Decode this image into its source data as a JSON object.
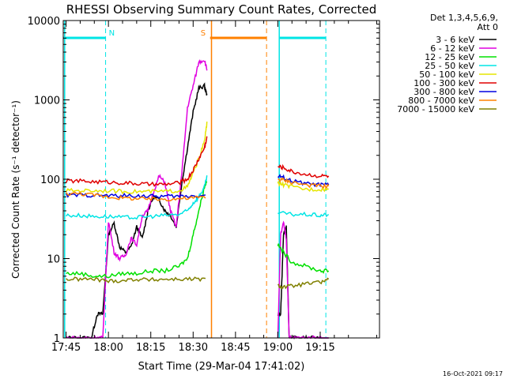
{
  "chart_data": {
    "type": "line",
    "title": "RHESSI Observing Summary Count Rates, Corrected",
    "xlabel": "Start Time (29-Mar-04 17:41:02)",
    "ylabel": "Corrected Count Rate (s⁻¹ detector⁻¹)",
    "yscale": "log",
    "ylim": [
      1,
      10000
    ],
    "xlim_minutes": [
      -16,
      96
    ],
    "x_ticks": [
      {
        "t": -15,
        "label": "17:45"
      },
      {
        "t": 0,
        "label": "18:00"
      },
      {
        "t": 15,
        "label": "18:15"
      },
      {
        "t": 30,
        "label": "18:30"
      },
      {
        "t": 45,
        "label": "18:45"
      },
      {
        "t": 60,
        "label": "19:00"
      },
      {
        "t": 75,
        "label": "19:15"
      }
    ],
    "y_ticks": [
      {
        "v": 1,
        "label": "1"
      },
      {
        "v": 10,
        "label": "10"
      },
      {
        "v": 100,
        "label": "100"
      },
      {
        "v": 1000,
        "label": "1000"
      },
      {
        "v": 10000,
        "label": "10000"
      }
    ],
    "legend_title": [
      "Det 1,3,4,5,6,9,",
      "Att 0"
    ],
    "legend_position": "top-right",
    "footer_date": "16-Oct-2021 09:17",
    "markers": [
      {
        "label": "N",
        "color": "#00e5e5",
        "t_start": -16,
        "t_end": -1,
        "t_line_solid": -15.5,
        "t_line_dashed": -1
      },
      {
        "label": "S",
        "color": "#ff8000",
        "t_start": 36,
        "t_end": 56,
        "t_line_solid": 36.5,
        "t_line_dashed": 56
      },
      {
        "label": "",
        "color": "#00e5e5",
        "t_start": 60.5,
        "t_end": 77,
        "t_line_solid": 60.5,
        "t_line_dashed": 77
      }
    ],
    "series": [
      {
        "name": "3 - 6 keV",
        "color": "#000000",
        "x": [
          -15,
          -10,
          -6,
          -4,
          -2,
          0,
          2,
          4,
          6,
          8,
          10,
          12,
          14,
          16,
          18,
          20,
          22,
          24,
          26,
          28,
          30,
          32,
          34,
          35,
          60,
          61,
          62,
          63,
          64,
          66,
          70,
          74,
          78
        ],
        "y": [
          1,
          1,
          1,
          2,
          2,
          20,
          28,
          14,
          12,
          14,
          25,
          18,
          40,
          60,
          55,
          40,
          35,
          25,
          90,
          250,
          700,
          1400,
          1500,
          1100,
          2,
          2,
          20,
          25,
          1,
          1,
          1,
          1,
          1
        ]
      },
      {
        "name": "6 - 12 keV",
        "color": "#e000e0",
        "x": [
          -15,
          -10,
          -6,
          -4,
          -2,
          0,
          2,
          4,
          6,
          8,
          10,
          12,
          14,
          16,
          18,
          20,
          22,
          24,
          26,
          28,
          30,
          32,
          34,
          35,
          60,
          61,
          62,
          63,
          64,
          66,
          70,
          74,
          78
        ],
        "y": [
          1,
          1,
          1,
          1,
          1,
          30,
          12,
          10,
          11,
          18,
          15,
          35,
          40,
          70,
          110,
          90,
          40,
          25,
          120,
          800,
          1500,
          3000,
          3200,
          2300,
          1,
          20,
          28,
          18,
          1,
          1,
          1,
          1,
          1
        ]
      },
      {
        "name": "12 - 25 keV",
        "color": "#00e000",
        "x": [
          -15,
          -10,
          -5,
          0,
          5,
          10,
          15,
          20,
          25,
          28,
          30,
          32,
          34,
          35,
          60,
          62,
          65,
          70,
          75,
          78
        ],
        "y": [
          6.5,
          6.5,
          6,
          6,
          6.5,
          6.5,
          7,
          7,
          8,
          10,
          20,
          40,
          80,
          100,
          15,
          12,
          9,
          8,
          7,
          7
        ]
      },
      {
        "name": "25 - 50 keV",
        "color": "#00e5e5",
        "x": [
          -15,
          -10,
          -5,
          0,
          5,
          10,
          15,
          20,
          25,
          28,
          30,
          32,
          34,
          35,
          60,
          65,
          70,
          75,
          78
        ],
        "y": [
          35,
          35,
          34,
          34,
          33,
          33,
          34,
          35,
          36,
          40,
          50,
          60,
          80,
          110,
          38,
          36,
          36,
          35,
          36
        ]
      },
      {
        "name": "50 - 100 keV",
        "color": "#e5e500",
        "x": [
          -15,
          -10,
          -5,
          0,
          5,
          10,
          15,
          20,
          25,
          28,
          30,
          32,
          34,
          35,
          60,
          62,
          65,
          70,
          75,
          78
        ],
        "y": [
          72,
          72,
          72,
          72,
          70,
          70,
          70,
          70,
          72,
          80,
          120,
          180,
          300,
          550,
          90,
          85,
          80,
          75,
          75,
          75
        ]
      },
      {
        "name": "100 - 300 keV",
        "color": "#e00000",
        "x": [
          -15,
          -10,
          -5,
          0,
          5,
          10,
          15,
          20,
          25,
          28,
          30,
          32,
          34,
          35,
          60,
          62,
          65,
          70,
          75,
          78
        ],
        "y": [
          95,
          95,
          93,
          92,
          90,
          88,
          86,
          86,
          90,
          100,
          130,
          180,
          250,
          350,
          145,
          140,
          125,
          115,
          110,
          110
        ]
      },
      {
        "name": "300 - 800 keV",
        "color": "#0000e0",
        "x": [
          -15,
          -10,
          -5,
          0,
          5,
          10,
          15,
          20,
          25,
          30,
          35,
          60,
          62,
          65,
          70,
          75,
          78
        ],
        "y": [
          63,
          63,
          63,
          62,
          62,
          62,
          61,
          61,
          61,
          62,
          62,
          110,
          105,
          95,
          88,
          85,
          85
        ]
      },
      {
        "name": "800 - 7000 keV",
        "color": "#ff8000",
        "x": [
          -15,
          -10,
          -5,
          0,
          5,
          10,
          15,
          20,
          25,
          30,
          35,
          60,
          62,
          65,
          70,
          75,
          78
        ],
        "y": [
          66,
          66,
          63,
          60,
          58,
          57,
          56,
          56,
          57,
          58,
          60,
          100,
          98,
          92,
          85,
          82,
          82
        ]
      },
      {
        "name": "7000 - 15000 keV",
        "color": "#808000",
        "x": [
          -15,
          -10,
          -5,
          0,
          5,
          10,
          15,
          20,
          25,
          30,
          35,
          60,
          62,
          65,
          70,
          75,
          78
        ],
        "y": [
          5.5,
          5.5,
          5.5,
          5.2,
          5.3,
          5.5,
          5.4,
          5.5,
          5.5,
          5.5,
          5.5,
          4.5,
          4.4,
          4.5,
          4.8,
          5,
          5.5
        ]
      }
    ]
  }
}
